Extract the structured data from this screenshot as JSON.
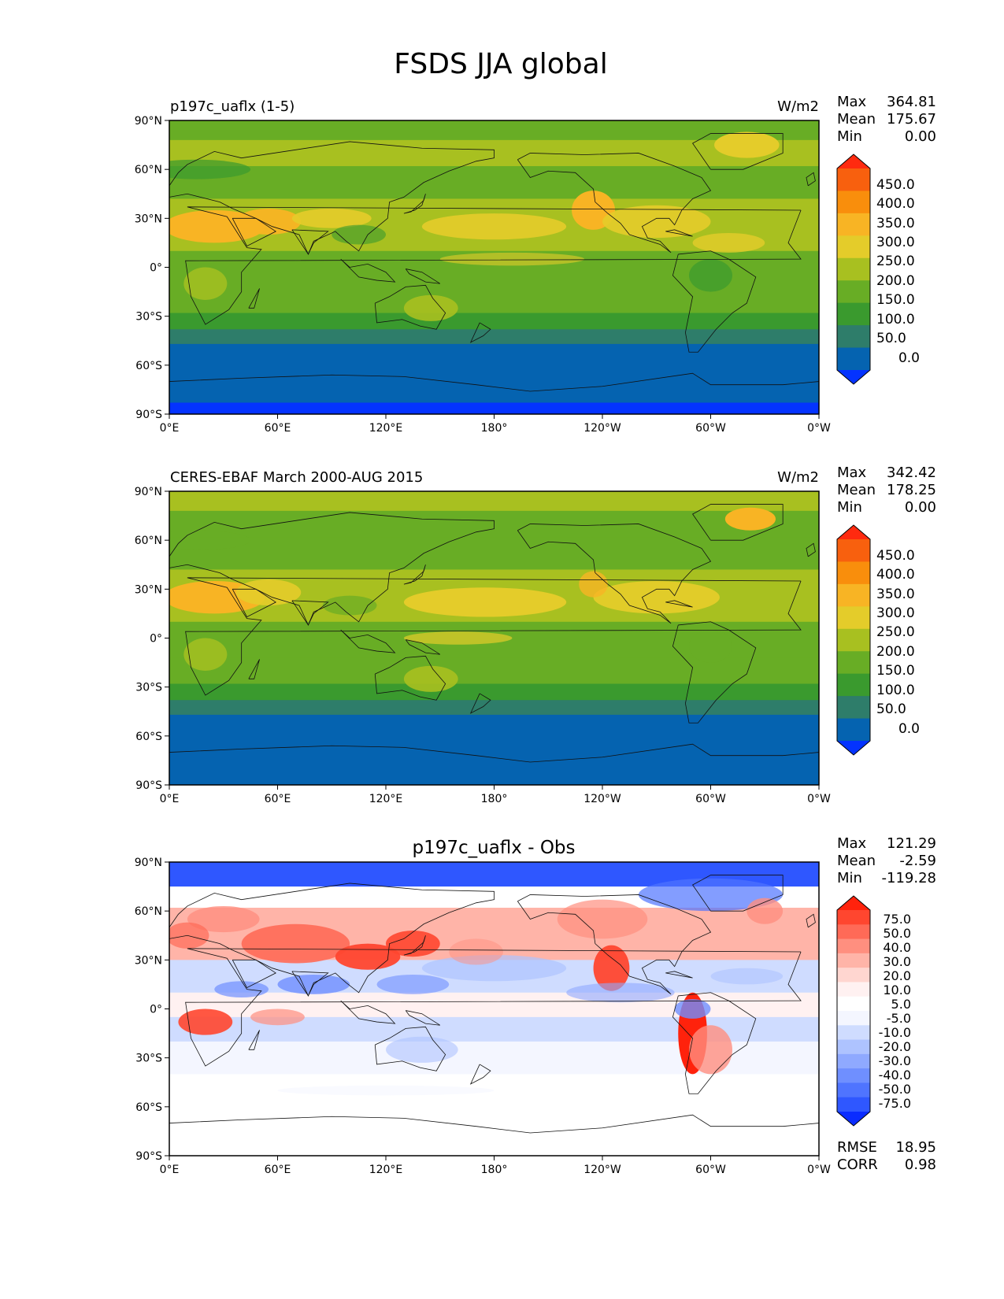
{
  "figure": {
    "title": "FSDS JJA global"
  },
  "axes": {
    "lat_ticks": [
      "90°N",
      "60°N",
      "30°N",
      "0°",
      "30°S",
      "60°S",
      "90°S"
    ],
    "lon_ticks": [
      "0°E",
      "60°E",
      "120°E",
      "180°",
      "120°W",
      "60°W",
      "0°W"
    ]
  },
  "colors": {
    "abs_levels": [
      "#0433ff",
      "#0563b0",
      "#2e7d6a",
      "#3a9a2e",
      "#68ad25",
      "#a8c020",
      "#e4cc2a",
      "#f8b424",
      "#f98e0c",
      "#f8600e",
      "#ff2a0f"
    ],
    "diff_levels": [
      "#0a2cff",
      "#2f57ff",
      "#4f74ff",
      "#6f8fff",
      "#8fa9ff",
      "#aec3ff",
      "#cfdcff",
      "#f4f6ff",
      "#ffffff",
      "#fff1f1",
      "#ffd6d0",
      "#ffb4a8",
      "#ff8f7f",
      "#ff6a57",
      "#ff462f",
      "#ff220c"
    ]
  },
  "panels": [
    {
      "left_title": "p197c_uaflx (1-5)",
      "center_title": "",
      "units": "W/m2",
      "stats": [
        {
          "label": "Max",
          "value": "364.81"
        },
        {
          "label": "Mean",
          "value": "175.67"
        },
        {
          "label": "Min",
          "value": "0.00"
        }
      ],
      "colorbar_labels": [
        "450.0",
        "400.0",
        "350.0",
        "300.0",
        "250.0",
        "200.0",
        "150.0",
        "100.0",
        "50.0",
        "0.0"
      ],
      "metrics": []
    },
    {
      "left_title": "CERES-EBAF March 2000-AUG 2015",
      "center_title": "",
      "units": "W/m2",
      "stats": [
        {
          "label": "Max",
          "value": "342.42"
        },
        {
          "label": "Mean",
          "value": "178.25"
        },
        {
          "label": "Min",
          "value": "0.00"
        }
      ],
      "colorbar_labels": [
        "450.0",
        "400.0",
        "350.0",
        "300.0",
        "250.0",
        "200.0",
        "150.0",
        "100.0",
        "50.0",
        "0.0"
      ],
      "metrics": []
    },
    {
      "left_title": "",
      "center_title": "p197c_uaflx - Obs",
      "units": "",
      "stats": [
        {
          "label": "Max",
          "value": "121.29"
        },
        {
          "label": "Mean",
          "value": "-2.59"
        },
        {
          "label": "Min",
          "value": "-119.28"
        }
      ],
      "colorbar_labels": [
        "75.0",
        "50.0",
        "40.0",
        "30.0",
        "20.0",
        "10.0",
        "5.0",
        "-5.0",
        "-10.0",
        "-20.0",
        "-30.0",
        "-40.0",
        "-50.0",
        "-75.0"
      ],
      "metrics": [
        {
          "label": "RMSE",
          "value": "18.95"
        },
        {
          "label": "CORR",
          "value": "0.98"
        }
      ]
    }
  ]
}
